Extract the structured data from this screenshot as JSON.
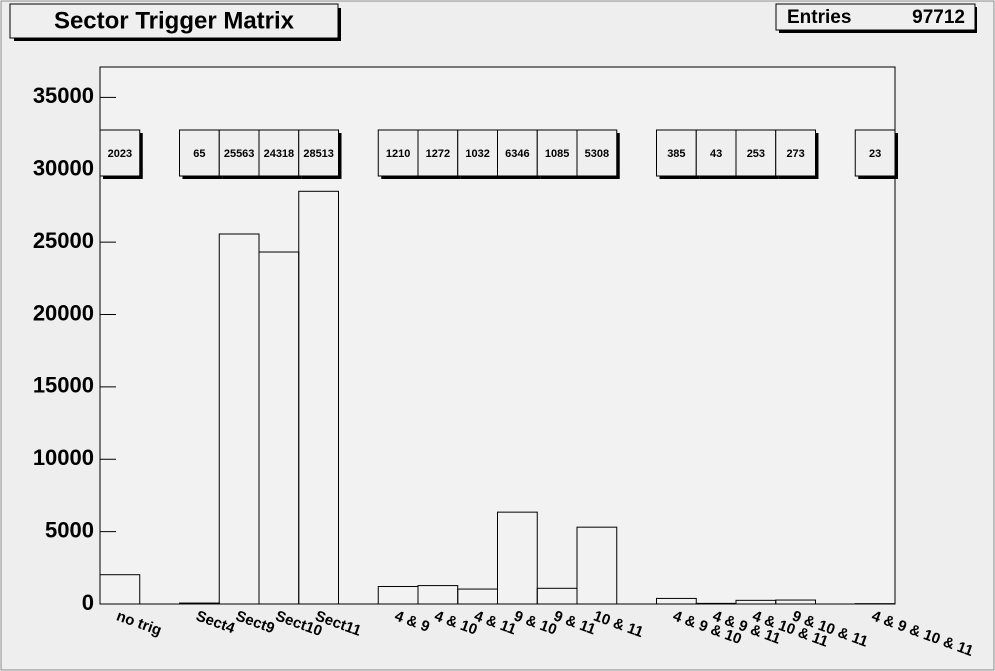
{
  "chart_data": {
    "type": "histogram",
    "title": "Sector Trigger Matrix",
    "stats_label": "Entries",
    "stats_value": 97712,
    "categories": [
      "no trig",
      null,
      "Sect4",
      "Sect9",
      "Sect10",
      "Sect11",
      null,
      "4 & 9",
      "4 & 10",
      "4 & 11",
      "9 & 10",
      "9 & 11",
      "10 & 11",
      null,
      "4 & 9 & 10",
      "4 & 9 & 11",
      "4 & 10 & 11",
      "9 & 10 & 11",
      null,
      "4 & 9 & 10 & 11"
    ],
    "values": [
      2023,
      null,
      65,
      25563,
      24318,
      28513,
      null,
      1210,
      1272,
      1032,
      6346,
      1085,
      5308,
      null,
      385,
      43,
      253,
      273,
      null,
      23
    ],
    "color": "#000000",
    "ylim": [
      0,
      37100
    ],
    "yticks": [
      0,
      5000,
      10000,
      15000,
      20000,
      25000,
      30000,
      35000
    ]
  }
}
